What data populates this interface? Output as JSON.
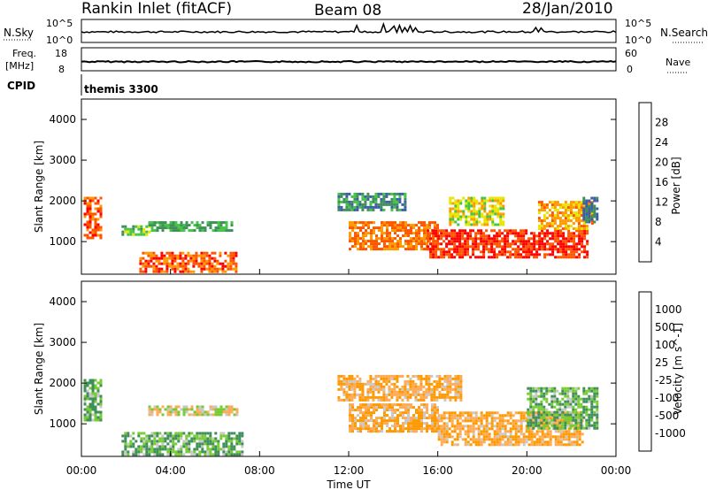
{
  "header": {
    "radar": "Rankin Inlet (fitACF)",
    "beam": "Beam 08",
    "date": "28/Jan/2010"
  },
  "top_panels": {
    "nsky_label": "N.Sky",
    "nsearch_label": "N.Search",
    "nsky_ticks": [
      "10^5",
      "10^0"
    ],
    "nsearch_ticks": [
      "10^5",
      "10^0"
    ],
    "freq_label": "Freq.",
    "freq_unit": "[MHz]",
    "freq_ticks": [
      "18",
      "8"
    ],
    "nave_label": "Nave",
    "nave_ticks": [
      "60",
      "0"
    ],
    "cpid_label": "CPID",
    "cpid_value": "themis 3300"
  },
  "colors": {
    "power_scale": [
      "#0000ff",
      "#3a5fa8",
      "#3f8f5a",
      "#44c444",
      "#e6e600",
      "#ff9900",
      "#ff5500",
      "#ff0000"
    ],
    "velocity_scale": [
      "#ff0000",
      "#ff6600",
      "#ff9900",
      "#ffaa55",
      "#c8c8c8",
      "#77cc33",
      "#3f8f5a",
      "#3a5fa8",
      "#0000ff"
    ]
  },
  "chart_data": [
    {
      "type": "heatmap",
      "title": "Power",
      "xlabel": "",
      "ylabel": "Slant Range [km]",
      "ylim": [
        200,
        4500
      ],
      "y_ticks": [
        "1000",
        "2000",
        "3000",
        "4000"
      ],
      "colorbar_label": "Power [dB]",
      "colorbar_ticks": [
        "4",
        "8",
        "12",
        "16",
        "20",
        "24",
        "28"
      ],
      "colorbar_range": [
        0,
        32
      ],
      "regions": [
        {
          "t0": 0.1,
          "t1": 0.9,
          "r0": 1100,
          "r1": 2100,
          "value": 26
        },
        {
          "t0": 1.8,
          "t1": 3.0,
          "r0": 1150,
          "r1": 1400,
          "value": 14
        },
        {
          "t0": 2.6,
          "t1": 7.0,
          "r0": 250,
          "r1": 750,
          "value": 26
        },
        {
          "t0": 3.0,
          "t1": 6.8,
          "r0": 1300,
          "r1": 1500,
          "value": 12
        },
        {
          "t0": 11.5,
          "t1": 14.5,
          "r0": 1800,
          "r1": 2200,
          "value": 10
        },
        {
          "t0": 12.0,
          "t1": 16.0,
          "r0": 800,
          "r1": 1500,
          "value": 24
        },
        {
          "t0": 15.5,
          "t1": 22.7,
          "r0": 600,
          "r1": 1300,
          "value": 28
        },
        {
          "t0": 16.5,
          "t1": 19.0,
          "r0": 1400,
          "r1": 2100,
          "value": 18
        },
        {
          "t0": 20.5,
          "t1": 23.0,
          "r0": 1300,
          "r1": 2000,
          "value": 22
        },
        {
          "t0": 22.5,
          "t1": 23.2,
          "r0": 1500,
          "r1": 2100,
          "value": 8
        }
      ]
    },
    {
      "type": "heatmap",
      "title": "Velocity",
      "xlabel": "Time UT",
      "ylabel": "Slant Range [km]",
      "ylim": [
        200,
        4500
      ],
      "y_ticks": [
        "1000",
        "2000",
        "3000",
        "4000"
      ],
      "x_ticks": [
        "00:00",
        "04:00",
        "08:00",
        "12:00",
        "16:00",
        "20:00",
        "00:00"
      ],
      "xlim": [
        0,
        24
      ],
      "colorbar_label": "Velocity [m s^-1]",
      "colorbar_ticks": [
        "1000",
        "500",
        "100",
        "25",
        "-25",
        "-100",
        "-500",
        "-1000"
      ],
      "regions": [
        {
          "t0": 0.1,
          "t1": 0.9,
          "r0": 1100,
          "r1": 2100,
          "value": 100
        },
        {
          "t0": 1.8,
          "t1": 7.2,
          "r0": 250,
          "r1": 800,
          "value": 100
        },
        {
          "t0": 3.0,
          "t1": 7.0,
          "r0": 1250,
          "r1": 1450,
          "value": 0
        },
        {
          "t0": 11.5,
          "t1": 17.0,
          "r0": 1600,
          "r1": 2200,
          "value": -100
        },
        {
          "t0": 12.0,
          "t1": 16.0,
          "r0": 800,
          "r1": 1500,
          "value": -100
        },
        {
          "t0": 16.0,
          "t1": 22.5,
          "r0": 500,
          "r1": 1300,
          "value": -100
        },
        {
          "t0": 20.0,
          "t1": 23.2,
          "r0": 900,
          "r1": 1900,
          "value": 100
        }
      ]
    }
  ]
}
